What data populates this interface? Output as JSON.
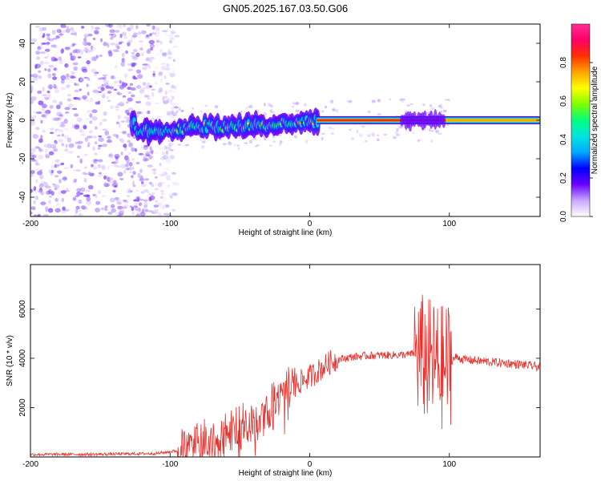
{
  "title": "GN05.2025.167.03.50.G06",
  "colors": {
    "line": "#e8302c",
    "background": "#ffffff",
    "frame": "#000000"
  },
  "colorbar": {
    "label": "Normalized spectral amplitude",
    "ticks": [
      "0.0",
      "0.2",
      "0.4",
      "0.6",
      "0.8"
    ],
    "range": [
      0,
      1
    ],
    "colors": [
      "#ffffff",
      "#c9a6ff",
      "#6a00ff",
      "#0000ff",
      "#00aaff",
      "#00e5e0",
      "#00ff7f",
      "#7fff00",
      "#ffff00",
      "#ffa500",
      "#ff3000",
      "#ff0066",
      "#ff2d95"
    ]
  },
  "chart_data": [
    {
      "type": "heatmap",
      "title": "GN05.2025.167.03.50.G06",
      "xlabel": "Height of straight line (km)",
      "ylabel": "Frequency (Hz)",
      "xlim": [
        -200,
        165
      ],
      "ylim": [
        -50,
        50
      ],
      "xticks": [
        "-200",
        "-100",
        "0",
        "100"
      ],
      "yticks": [
        "-40",
        "-20",
        "0",
        "20",
        "40"
      ],
      "description_points": {
        "noise_region_km": [
          -200,
          -100
        ],
        "band_center_hz": [
          [
            -125,
            -6
          ],
          [
            -100,
            -5
          ],
          [
            -75,
            -3
          ],
          [
            -50,
            -4
          ],
          [
            -25,
            -2
          ],
          [
            0,
            0
          ],
          [
            50,
            0
          ],
          [
            100,
            0
          ],
          [
            165,
            0
          ]
        ]
      }
    },
    {
      "type": "line",
      "xlabel": "Height of straight line (km)",
      "ylabel": "SNR (10 * v/v)",
      "xlim": [
        -200,
        165
      ],
      "ylim": [
        0,
        7800
      ],
      "xticks": [
        "-200",
        "-100",
        "0",
        "100"
      ],
      "yticks": [
        "2000",
        "4000",
        "6000"
      ],
      "series": [
        {
          "x": [
            -200,
            -150,
            -110,
            -95,
            -85,
            -80,
            -70,
            -60,
            -50,
            -45,
            -40,
            -35,
            -30,
            -25,
            -20,
            -15,
            -10,
            -5,
            0,
            5,
            10,
            15,
            20,
            30,
            40,
            50,
            60,
            70,
            75,
            80,
            85,
            90,
            95,
            100,
            105,
            110,
            120,
            130,
            140,
            150,
            165
          ],
          "y": [
            100,
            110,
            140,
            250,
            450,
            700,
            800,
            950,
            1200,
            1450,
            1500,
            1750,
            1900,
            2250,
            2500,
            2800,
            2950,
            3100,
            3250,
            3450,
            3650,
            3850,
            3950,
            4050,
            4100,
            4120,
            4130,
            4150,
            4200,
            4100,
            3900,
            3800,
            3600,
            3850,
            4050,
            3950,
            3900,
            3850,
            3800,
            3750,
            3650
          ]
        }
      ]
    }
  ]
}
